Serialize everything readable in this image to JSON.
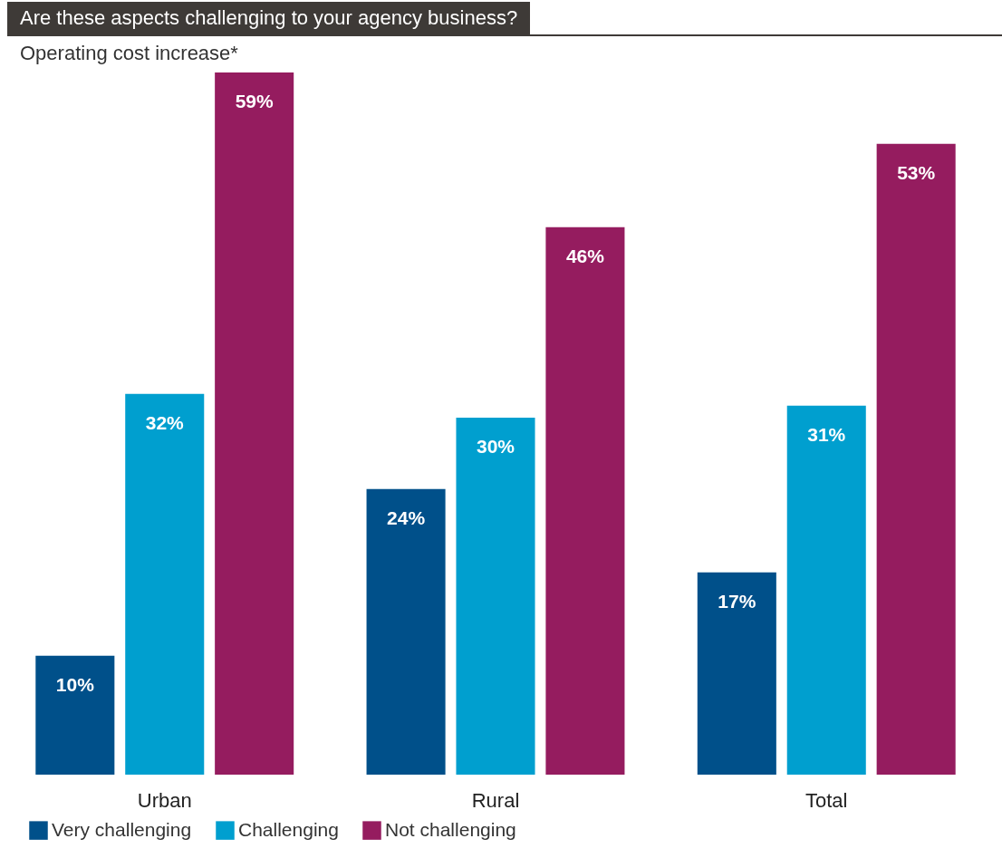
{
  "chart_data": {
    "type": "bar",
    "title": "Are these aspects challenging to your agency business?",
    "subtitle": "Operating cost increase*",
    "categories": [
      "Urban",
      "Rural",
      "Total"
    ],
    "series": [
      {
        "name": "Very challenging",
        "color": "#00508a",
        "values": [
          10,
          24,
          17
        ],
        "value_labels": [
          "10%",
          "24%",
          "17%"
        ]
      },
      {
        "name": "Challenging",
        "color": "#009fcf",
        "values": [
          32,
          30,
          31
        ],
        "value_labels": [
          "32%",
          "30%",
          "31%"
        ]
      },
      {
        "name": "Not challenging",
        "color": "#951c5f",
        "values": [
          59,
          46,
          53
        ],
        "value_labels": [
          "59%",
          "46%",
          "53%"
        ]
      }
    ],
    "legend": "bottom"
  }
}
